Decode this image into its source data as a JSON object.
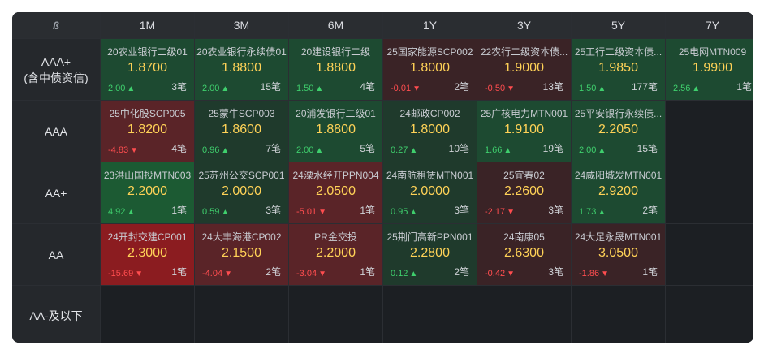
{
  "corner_icon": "logo-icon",
  "columns": [
    "1M",
    "3M",
    "6M",
    "1Y",
    "3Y",
    "5Y",
    "7Y"
  ],
  "rows": [
    {
      "label_lines": [
        "AAA+",
        "(含中债资信)"
      ],
      "cells": [
        {
          "name": "20农业银行二级01",
          "yield": "1.8700",
          "change": "2.00",
          "dir": "up",
          "count": "3笔",
          "tone": "g2"
        },
        {
          "name": "20农业银行永续债01",
          "yield": "1.8800",
          "change": "2.00",
          "dir": "up",
          "count": "15笔",
          "tone": "g2"
        },
        {
          "name": "20建设银行二级",
          "yield": "1.8800",
          "change": "1.50",
          "dir": "up",
          "count": "4笔",
          "tone": "g2"
        },
        {
          "name": "25国家能源SCP002",
          "yield": "1.8000",
          "change": "-0.01",
          "dir": "down",
          "count": "2笔",
          "tone": "r1"
        },
        {
          "name": "22农行二级资本债...",
          "yield": "1.9000",
          "change": "-0.50",
          "dir": "down",
          "count": "13笔",
          "tone": "r1"
        },
        {
          "name": "25工行二级资本债...",
          "yield": "1.9850",
          "change": "1.50",
          "dir": "up",
          "count": "177笔",
          "tone": "g2"
        },
        {
          "name": "25电网MTN009",
          "yield": "1.9900",
          "change": "2.56",
          "dir": "up",
          "count": "1笔",
          "tone": "g2"
        }
      ]
    },
    {
      "label_lines": [
        "AAA"
      ],
      "cells": [
        {
          "name": "25中化股SCP005",
          "yield": "1.8200",
          "change": "-4.83",
          "dir": "down",
          "count": "4笔",
          "tone": "r2"
        },
        {
          "name": "25蒙牛SCP003",
          "yield": "1.8600",
          "change": "0.96",
          "dir": "up",
          "count": "7笔",
          "tone": "g1"
        },
        {
          "name": "20浦发银行二级01",
          "yield": "1.8800",
          "change": "2.00",
          "dir": "up",
          "count": "5笔",
          "tone": "g2"
        },
        {
          "name": "24邮政CP002",
          "yield": "1.8000",
          "change": "0.27",
          "dir": "up",
          "count": "10笔",
          "tone": "g1"
        },
        {
          "name": "25广核电力MTN001",
          "yield": "1.9100",
          "change": "1.66",
          "dir": "up",
          "count": "19笔",
          "tone": "g2"
        },
        {
          "name": "25平安银行永续债...",
          "yield": "2.2050",
          "change": "2.00",
          "dir": "up",
          "count": "15笔",
          "tone": "g2"
        },
        null
      ]
    },
    {
      "label_lines": [
        "AA+"
      ],
      "cells": [
        {
          "name": "23洪山国投MTN003",
          "yield": "2.2000",
          "change": "4.92",
          "dir": "up",
          "count": "1笔",
          "tone": "g3"
        },
        {
          "name": "25苏州公交SCP001",
          "yield": "2.0000",
          "change": "0.59",
          "dir": "up",
          "count": "3笔",
          "tone": "g1"
        },
        {
          "name": "24溧水经开PPN004",
          "yield": "2.0500",
          "change": "-5.01",
          "dir": "down",
          "count": "1笔",
          "tone": "r2"
        },
        {
          "name": "24南航租赁MTN001",
          "yield": "2.0000",
          "change": "0.95",
          "dir": "up",
          "count": "3笔",
          "tone": "g1"
        },
        {
          "name": "25宜春02",
          "yield": "2.2600",
          "change": "-2.17",
          "dir": "down",
          "count": "3笔",
          "tone": "r1"
        },
        {
          "name": "24咸阳城发MTN001",
          "yield": "2.9200",
          "change": "1.73",
          "dir": "up",
          "count": "2笔",
          "tone": "g2"
        },
        null
      ]
    },
    {
      "label_lines": [
        "AA"
      ],
      "cells": [
        {
          "name": "24开封交建CP001",
          "yield": "2.3000",
          "change": "-15.69",
          "dir": "down",
          "count": "1笔",
          "tone": "r3"
        },
        {
          "name": "24大丰海港CP002",
          "yield": "2.1500",
          "change": "-4.04",
          "dir": "down",
          "count": "2笔",
          "tone": "r2"
        },
        {
          "name": "PR金交投",
          "yield": "2.2000",
          "change": "-3.04",
          "dir": "down",
          "count": "1笔",
          "tone": "r2"
        },
        {
          "name": "25荆门高新PPN001",
          "yield": "2.2800",
          "change": "0.12",
          "dir": "up",
          "count": "2笔",
          "tone": "g1"
        },
        {
          "name": "24南康05",
          "yield": "2.6300",
          "change": "-0.42",
          "dir": "down",
          "count": "3笔",
          "tone": "r1"
        },
        {
          "name": "24大足永晟MTN001",
          "yield": "3.0500",
          "change": "-1.86",
          "dir": "down",
          "count": "1笔",
          "tone": "r1"
        },
        null
      ]
    },
    {
      "label_lines": [
        "AA-及以下"
      ],
      "cells": [
        null,
        null,
        null,
        null,
        null,
        null,
        null
      ]
    }
  ],
  "colors": {
    "up": "#3fcf6d",
    "down": "#ff4d4f",
    "yield": "#ffd257"
  }
}
